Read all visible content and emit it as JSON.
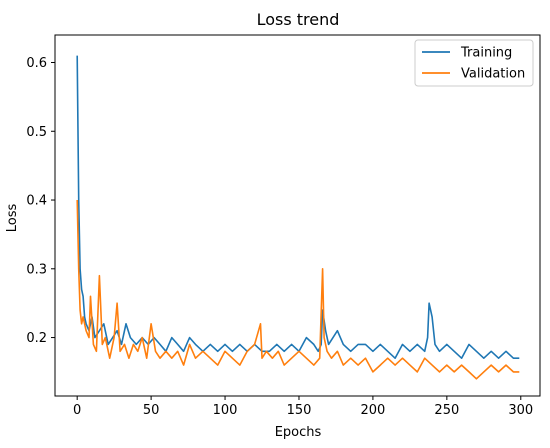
{
  "chart_data": {
    "type": "line",
    "title": "Loss trend",
    "xlabel": "Epochs",
    "ylabel": "Loss",
    "xlim": [
      -15,
      313
    ],
    "ylim": [
      0.115,
      0.64
    ],
    "x_ticks": [
      0,
      50,
      100,
      150,
      200,
      250,
      300
    ],
    "y_ticks": [
      0.2,
      0.3,
      0.4,
      0.5,
      0.6
    ],
    "grid": false,
    "legend_position": "top-right",
    "series": [
      {
        "name": "Training",
        "color": "#1f77b4",
        "x": [
          0,
          1,
          2,
          3,
          4,
          5,
          6,
          8,
          10,
          12,
          15,
          18,
          21,
          24,
          27,
          30,
          33,
          36,
          40,
          44,
          48,
          52,
          56,
          60,
          64,
          68,
          72,
          76,
          80,
          85,
          90,
          95,
          100,
          105,
          110,
          115,
          120,
          125,
          130,
          135,
          140,
          145,
          150,
          155,
          160,
          163,
          165,
          166,
          168,
          170,
          173,
          176,
          180,
          185,
          190,
          195,
          200,
          205,
          210,
          215,
          220,
          225,
          230,
          235,
          237,
          238,
          240,
          242,
          245,
          250,
          255,
          260,
          265,
          270,
          275,
          280,
          285,
          290,
          295,
          299
        ],
        "y": [
          0.61,
          0.4,
          0.3,
          0.27,
          0.26,
          0.23,
          0.22,
          0.21,
          0.23,
          0.2,
          0.21,
          0.22,
          0.19,
          0.2,
          0.21,
          0.19,
          0.22,
          0.2,
          0.19,
          0.2,
          0.19,
          0.2,
          0.19,
          0.18,
          0.2,
          0.19,
          0.18,
          0.2,
          0.19,
          0.18,
          0.19,
          0.18,
          0.19,
          0.18,
          0.19,
          0.18,
          0.19,
          0.18,
          0.18,
          0.19,
          0.18,
          0.19,
          0.18,
          0.2,
          0.19,
          0.18,
          0.19,
          0.24,
          0.21,
          0.19,
          0.2,
          0.21,
          0.19,
          0.18,
          0.19,
          0.19,
          0.18,
          0.19,
          0.18,
          0.17,
          0.19,
          0.18,
          0.19,
          0.18,
          0.2,
          0.25,
          0.23,
          0.19,
          0.18,
          0.19,
          0.18,
          0.17,
          0.19,
          0.18,
          0.17,
          0.18,
          0.17,
          0.18,
          0.17,
          0.17
        ]
      },
      {
        "name": "Validation",
        "color": "#ff7f0e",
        "x": [
          0,
          1,
          2,
          3,
          4,
          6,
          8,
          9,
          11,
          13,
          15,
          17,
          19,
          22,
          25,
          27,
          29,
          32,
          35,
          38,
          41,
          44,
          47,
          50,
          53,
          56,
          60,
          64,
          68,
          72,
          76,
          80,
          85,
          90,
          95,
          100,
          105,
          110,
          115,
          120,
          124,
          125,
          128,
          132,
          136,
          140,
          145,
          150,
          155,
          160,
          164,
          166,
          167,
          169,
          172,
          176,
          180,
          185,
          190,
          195,
          200,
          205,
          210,
          215,
          220,
          225,
          230,
          235,
          240,
          245,
          250,
          255,
          260,
          265,
          270,
          275,
          280,
          285,
          290,
          295,
          299
        ],
        "y": [
          0.4,
          0.3,
          0.24,
          0.22,
          0.23,
          0.21,
          0.2,
          0.26,
          0.19,
          0.18,
          0.29,
          0.19,
          0.2,
          0.17,
          0.2,
          0.25,
          0.18,
          0.19,
          0.17,
          0.19,
          0.18,
          0.2,
          0.17,
          0.22,
          0.18,
          0.17,
          0.18,
          0.17,
          0.18,
          0.16,
          0.19,
          0.17,
          0.18,
          0.17,
          0.16,
          0.18,
          0.17,
          0.16,
          0.18,
          0.19,
          0.22,
          0.17,
          0.18,
          0.17,
          0.18,
          0.16,
          0.17,
          0.18,
          0.17,
          0.16,
          0.17,
          0.3,
          0.2,
          0.18,
          0.17,
          0.18,
          0.16,
          0.17,
          0.16,
          0.17,
          0.15,
          0.16,
          0.17,
          0.16,
          0.17,
          0.16,
          0.15,
          0.17,
          0.16,
          0.15,
          0.16,
          0.15,
          0.16,
          0.15,
          0.14,
          0.15,
          0.16,
          0.15,
          0.16,
          0.15,
          0.15
        ]
      }
    ]
  }
}
